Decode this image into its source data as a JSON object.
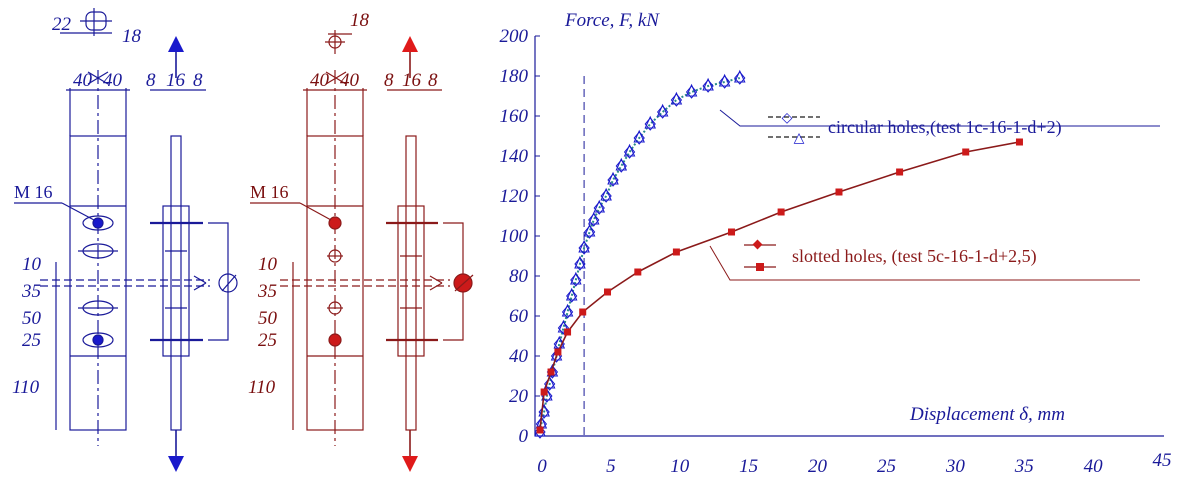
{
  "drawings": {
    "left": {
      "top_dims": [
        "22",
        "18"
      ],
      "width_dims": [
        "40",
        "40"
      ],
      "plate_dims": [
        "8",
        "16",
        "8"
      ],
      "bolt_label": "M 16",
      "spacing_dims": [
        "10",
        "35",
        "50",
        "25",
        "110"
      ],
      "color": "#1a1a99"
    },
    "right": {
      "top_dims": [
        "18"
      ],
      "width_dims": [
        "40",
        "40"
      ],
      "plate_dims": [
        "8",
        "16",
        "8"
      ],
      "bolt_label": "M 16",
      "spacing_dims": [
        "10",
        "35",
        "50",
        "25",
        "110"
      ],
      "color": "#8b1a1a"
    }
  },
  "chart_data": {
    "type": "scatter",
    "ylabel": "Force, F,  kN",
    "xlabel": "Displacement δ,  mm",
    "xlim": [
      0,
      45
    ],
    "ylim": [
      0,
      200
    ],
    "xticks": [
      0,
      5,
      10,
      15,
      20,
      25,
      30,
      35,
      40,
      45
    ],
    "yticks": [
      0,
      20,
      40,
      60,
      80,
      100,
      120,
      140,
      160,
      180,
      200
    ],
    "grid": false,
    "reference_line_x": 3.2,
    "legend_markers": [
      "◇",
      "△"
    ],
    "series": [
      {
        "name": "circular holes,(test 1c-16-1-d+2)",
        "color": "#1a1acc",
        "fit_color": "#2a8a8a",
        "points": [
          [
            0,
            2
          ],
          [
            0.1,
            6
          ],
          [
            0.3,
            12
          ],
          [
            0.5,
            20
          ],
          [
            0.7,
            26
          ],
          [
            0.9,
            32
          ],
          [
            1.2,
            40
          ],
          [
            1.4,
            46
          ],
          [
            1.7,
            54
          ],
          [
            2.0,
            62
          ],
          [
            2.3,
            70
          ],
          [
            2.6,
            78
          ],
          [
            2.9,
            86
          ],
          [
            3.2,
            94
          ],
          [
            3.6,
            102
          ],
          [
            3.9,
            108
          ],
          [
            4.3,
            114
          ],
          [
            4.8,
            120
          ],
          [
            5.3,
            128
          ],
          [
            5.9,
            135
          ],
          [
            6.5,
            142
          ],
          [
            7.2,
            149
          ],
          [
            8.0,
            156
          ],
          [
            8.9,
            162
          ],
          [
            9.9,
            168
          ],
          [
            11.0,
            172
          ],
          [
            12.2,
            175
          ],
          [
            13.4,
            177
          ],
          [
            14.5,
            179
          ]
        ]
      },
      {
        "name": "slotted holes,  (test 5c-16-1-d+2,5)",
        "color": "#8b1a1a",
        "points": [
          [
            0,
            3
          ],
          [
            0.3,
            22
          ],
          [
            0.8,
            32
          ],
          [
            1.3,
            42
          ],
          [
            2.0,
            52
          ],
          [
            3.1,
            62
          ],
          [
            4.9,
            72
          ],
          [
            7.1,
            82
          ],
          [
            9.9,
            92
          ],
          [
            13.9,
            102
          ],
          [
            17.5,
            112
          ],
          [
            21.7,
            122
          ],
          [
            26.1,
            132
          ],
          [
            30.9,
            142
          ],
          [
            34.8,
            147
          ]
        ]
      }
    ]
  }
}
